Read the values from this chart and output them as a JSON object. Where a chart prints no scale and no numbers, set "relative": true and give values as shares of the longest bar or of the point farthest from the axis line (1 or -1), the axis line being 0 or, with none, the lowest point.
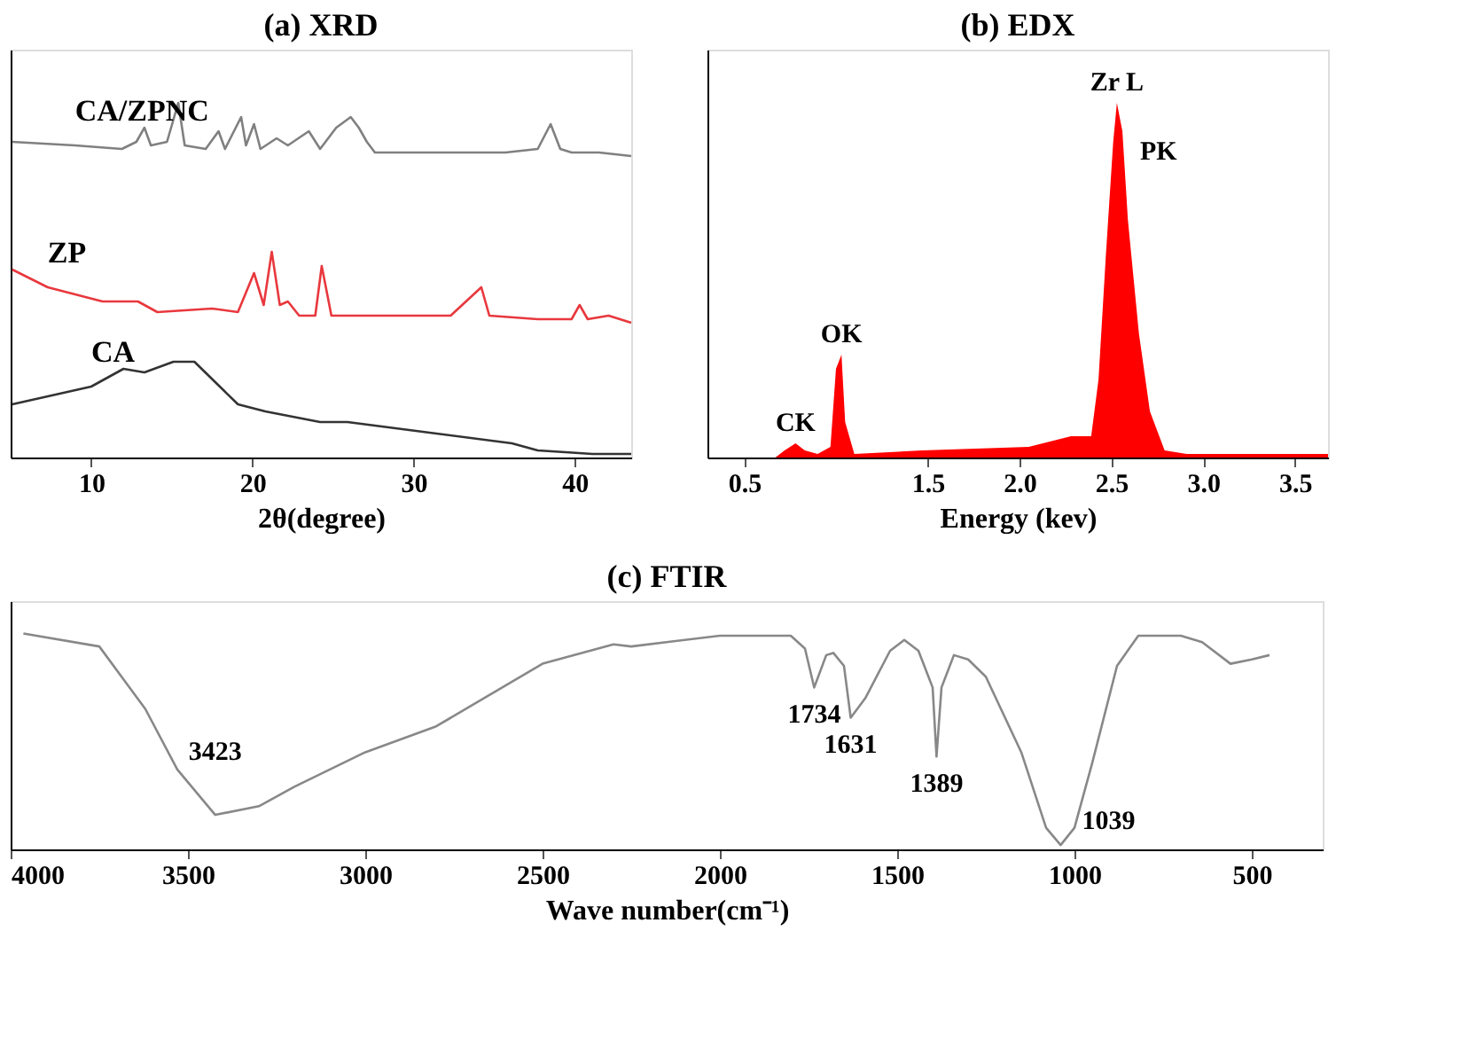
{
  "chart_data": [
    {
      "type": "line",
      "title": "(a)  XRD",
      "xlabel": "2θ(degree)",
      "xlim": [
        5,
        43.5
      ],
      "xticks": [
        10,
        20,
        30,
        40
      ],
      "relative": true,
      "tick_labels": "x",
      "grid": false,
      "legend": false,
      "marker": "none",
      "series": [
        {
          "name": "CA/ZPNC",
          "color": "#808080",
          "x": [
            5.1,
            9.0,
            11.9,
            12.8,
            13.3,
            13.7,
            14.7,
            15.4,
            15.8,
            17.1,
            17.9,
            18.3,
            19.3,
            19.6,
            20.1,
            20.5,
            21.5,
            22.2,
            23.5,
            24.2,
            25.2,
            26.1,
            26.6,
            27.1,
            27.6,
            29.6,
            32.6,
            35.7,
            37.7,
            38.5,
            39.1,
            39.8,
            41.5,
            43.5
          ],
          "values": [
            0.89,
            0.88,
            0.87,
            0.89,
            0.93,
            0.88,
            0.89,
            1.0,
            0.88,
            0.87,
            0.92,
            0.87,
            0.96,
            0.88,
            0.94,
            0.87,
            0.9,
            0.88,
            0.92,
            0.87,
            0.93,
            0.96,
            0.93,
            0.89,
            0.86,
            0.86,
            0.86,
            0.86,
            0.87,
            0.94,
            0.87,
            0.86,
            0.86,
            0.85
          ]
        },
        {
          "name": "ZP",
          "color": "#e8383d",
          "x": [
            5.1,
            7.3,
            10.7,
            12.9,
            14.1,
            17.5,
            19.1,
            20.1,
            20.7,
            21.2,
            21.7,
            22.2,
            22.9,
            23.9,
            24.3,
            24.9,
            27.6,
            32.3,
            34.2,
            34.7,
            37.7,
            39.8,
            40.3,
            40.8,
            42.1,
            43.5
          ],
          "values": [
            0.53,
            0.48,
            0.44,
            0.44,
            0.41,
            0.42,
            0.41,
            0.52,
            0.43,
            0.58,
            0.43,
            0.44,
            0.4,
            0.4,
            0.54,
            0.4,
            0.4,
            0.4,
            0.48,
            0.4,
            0.39,
            0.39,
            0.43,
            0.39,
            0.4,
            0.38
          ]
        },
        {
          "name": "CA",
          "color": "#333333",
          "x": [
            5.1,
            10.0,
            12.0,
            13.3,
            15.1,
            16.4,
            19.1,
            20.8,
            24.2,
            25.9,
            31.0,
            36.1,
            37.7,
            41.1,
            43.5
          ],
          "values": [
            0.15,
            0.2,
            0.25,
            0.24,
            0.27,
            0.27,
            0.15,
            0.13,
            0.1,
            0.1,
            0.07,
            0.04,
            0.02,
            0.01,
            0.01
          ]
        }
      ]
    },
    {
      "type": "area",
      "title": "(b)  EDX",
      "xlabel": "Energy (kev)",
      "xlim": [
        0.3,
        3.68
      ],
      "xticks": [
        0.5,
        1.5,
        {
          "value": 2,
          "label": "2.0"
        },
        2.5,
        {
          "value": 3,
          "label": "3.0"
        },
        3.5
      ],
      "relative": true,
      "tick_labels": "x",
      "grid": false,
      "legend": false,
      "series": [
        {
          "color": "#ff0000",
          "x": [
            0.3,
            0.67,
            0.72,
            0.78,
            0.83,
            0.9,
            0.97,
            1.0,
            1.03,
            1.05,
            1.1,
            1.47,
            2.05,
            2.28,
            2.39,
            2.43,
            2.47,
            2.51,
            2.53,
            2.56,
            2.59,
            2.65,
            2.71,
            2.79,
            2.91,
            3.68
          ],
          "values": [
            0,
            0,
            0.02,
            0.04,
            0.02,
            0.01,
            0.03,
            0.25,
            0.29,
            0.1,
            0.01,
            0.02,
            0.03,
            0.06,
            0.06,
            0.22,
            0.57,
            0.89,
            1.0,
            0.92,
            0.67,
            0.35,
            0.13,
            0.02,
            0.01,
            0.01
          ]
        }
      ],
      "annotations": [
        {
          "text": "CK",
          "x": 0.78,
          "y": 0.04
        },
        {
          "text": "OK",
          "x": 1.03,
          "y": 0.29
        },
        {
          "text": "Zr L",
          "x": 2.53,
          "y": 1.0
        },
        {
          "text": "PK",
          "x": 2.56,
          "y": 0.92
        }
      ]
    },
    {
      "type": "line",
      "title": "(c)  FTIR",
      "xlabel": "Wave number(cm⁻¹)",
      "xlim": [
        4000,
        300
      ],
      "xticks": [
        4000,
        3500,
        3000,
        2500,
        2000,
        1500,
        1000,
        500
      ],
      "relative": true,
      "tick_labels": "x",
      "grid": false,
      "legend": false,
      "marker": "none",
      "series": [
        {
          "color": "#888888",
          "x": [
            3964,
            3750,
            3620,
            3530,
            3423,
            3300,
            3200,
            3000,
            2800,
            2500,
            2300,
            2250,
            2000,
            1800,
            1760,
            1734,
            1700,
            1680,
            1650,
            1631,
            1590,
            1520,
            1480,
            1440,
            1400,
            1389,
            1375,
            1340,
            1300,
            1250,
            1150,
            1080,
            1039,
            1000,
            950,
            880,
            820,
            700,
            640,
            560,
            500,
            450
          ],
          "values": [
            1.0,
            0.94,
            0.65,
            0.37,
            0.16,
            0.2,
            0.29,
            0.45,
            0.57,
            0.86,
            0.95,
            0.94,
            0.99,
            0.99,
            0.93,
            0.75,
            0.9,
            0.91,
            0.85,
            0.61,
            0.7,
            0.92,
            0.97,
            0.92,
            0.75,
            0.43,
            0.75,
            0.9,
            0.88,
            0.8,
            0.45,
            0.1,
            0.02,
            0.1,
            0.4,
            0.85,
            0.99,
            0.99,
            0.96,
            0.86,
            0.88,
            0.9
          ]
        }
      ],
      "annotations": [
        {
          "text": "3423",
          "x": 3423,
          "y": 0.16
        },
        {
          "text": "1734",
          "x": 1734,
          "y": 0.75
        },
        {
          "text": "1631",
          "x": 1631,
          "y": 0.61
        },
        {
          "text": "1389",
          "x": 1389,
          "y": 0.43
        },
        {
          "text": "1039",
          "x": 1039,
          "y": 0.02
        }
      ]
    }
  ]
}
